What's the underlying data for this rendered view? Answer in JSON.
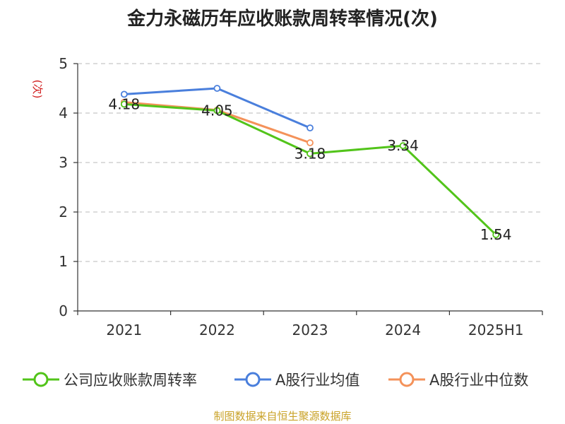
{
  "chart_data": {
    "type": "line",
    "title": "金力永磁历年应收账款周转率情况(次)",
    "ylabel": "(次)",
    "categories": [
      "2021",
      "2022",
      "2023",
      "2024",
      "2025H1"
    ],
    "ylim": [
      0,
      5
    ],
    "yticks": [
      0,
      1,
      2,
      3,
      4,
      5
    ],
    "grid": true,
    "legend_position": "bottom",
    "series": [
      {
        "name": "公司应收账款周转率",
        "color": "#52c41a",
        "values": [
          4.18,
          4.05,
          3.18,
          3.34,
          1.54
        ],
        "labels": [
          "4.18",
          "4.05",
          "3.18",
          "3.34",
          "1.54"
        ]
      },
      {
        "name": "A股行业均值",
        "color": "#4a7fdc",
        "values": [
          4.38,
          4.5,
          3.7,
          null,
          null
        ]
      },
      {
        "name": "A股行业中位数",
        "color": "#f4925a",
        "values": [
          4.22,
          4.06,
          3.4,
          null,
          null
        ]
      }
    ]
  },
  "source_note": "制图数据来自恒生聚源数据库"
}
